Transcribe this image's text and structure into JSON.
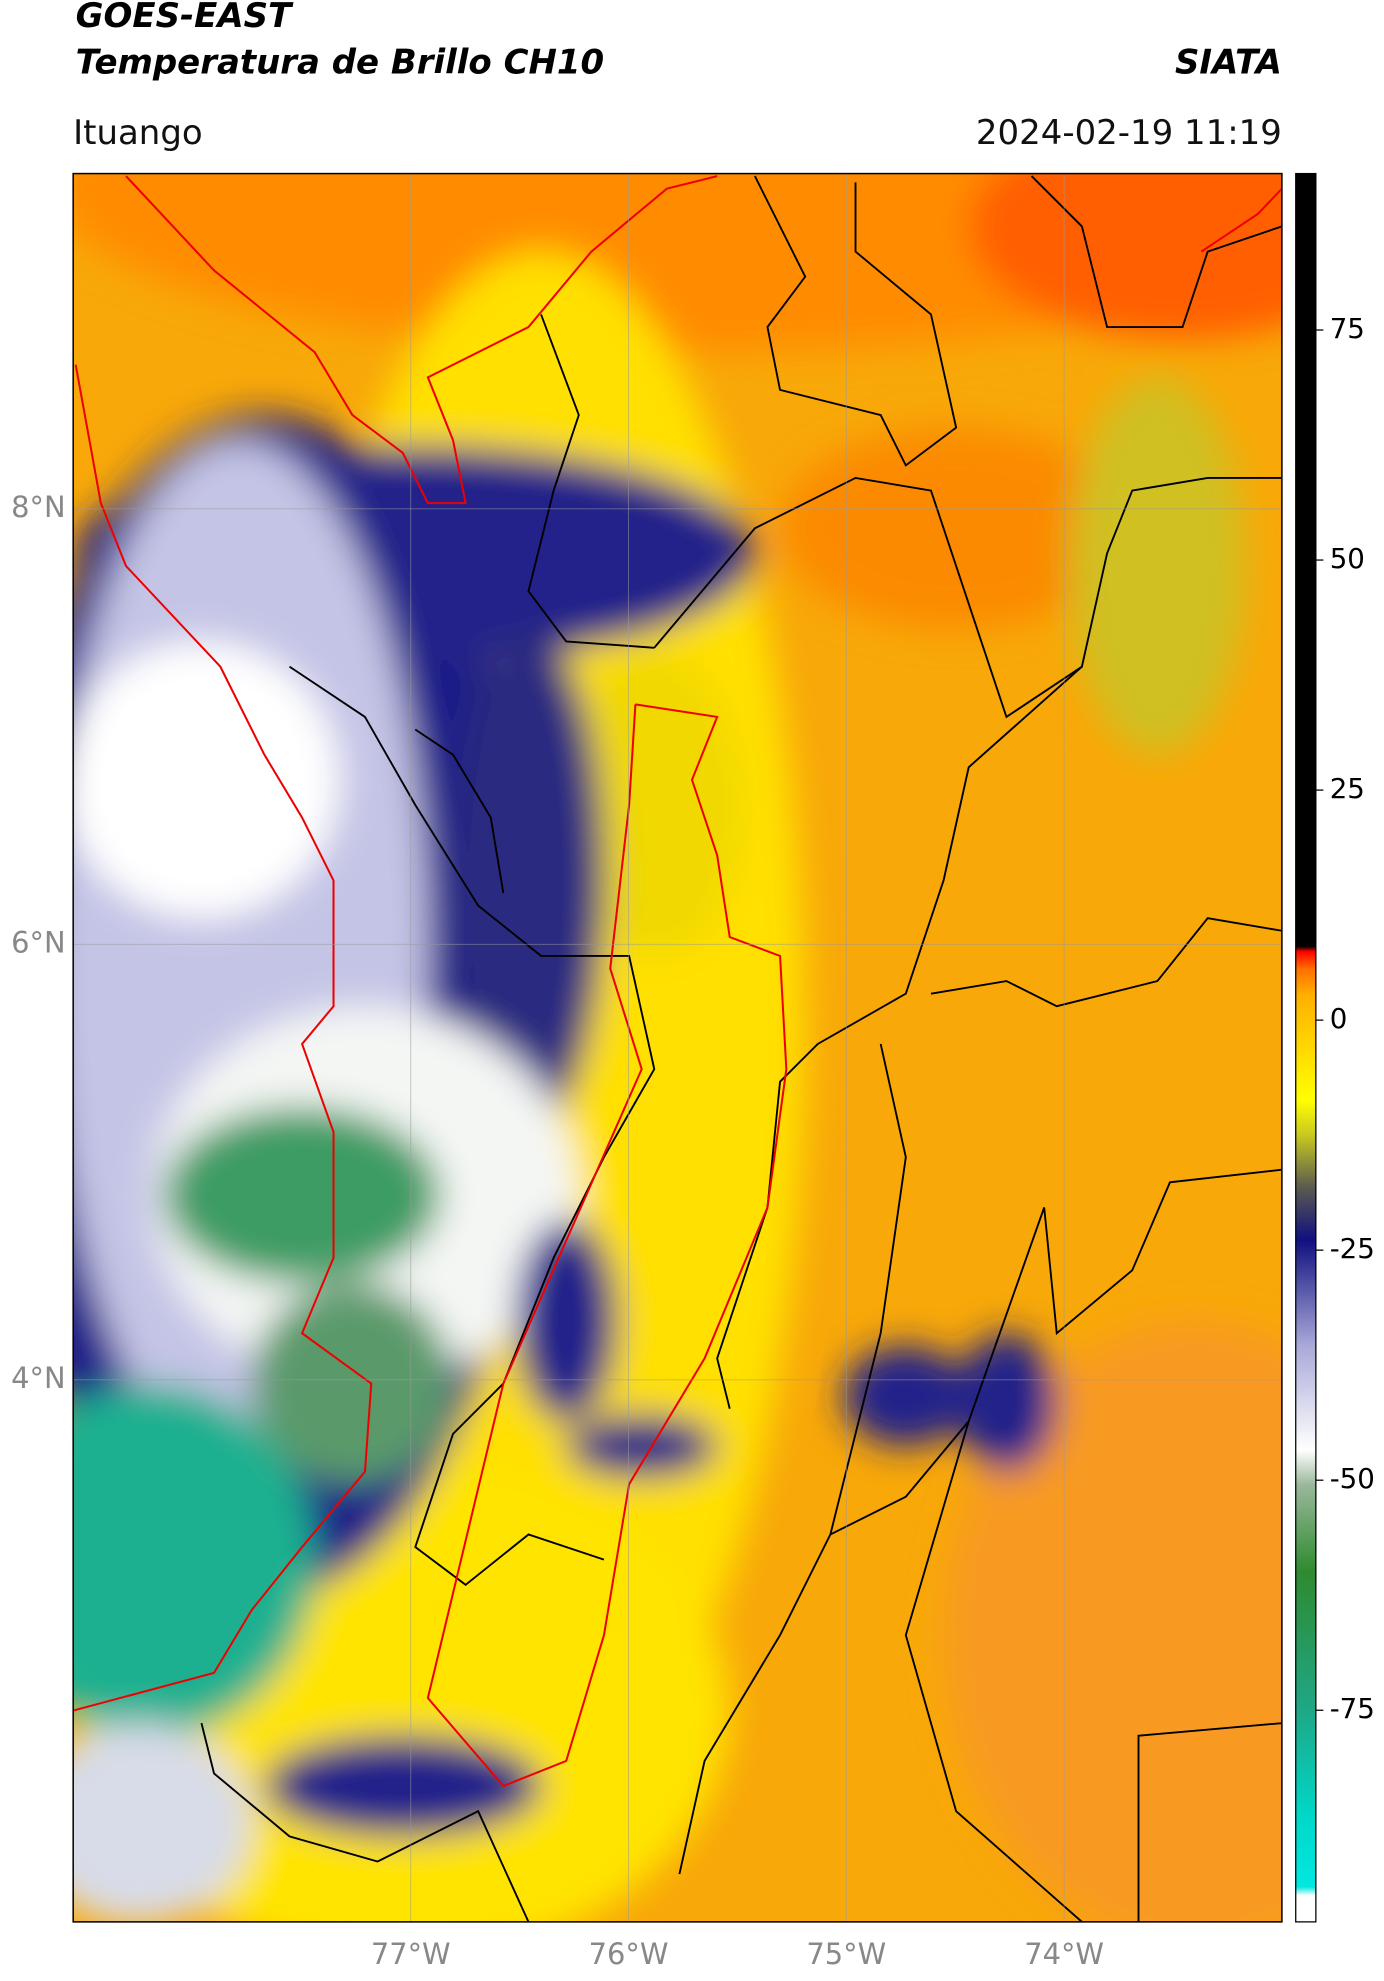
{
  "header": {
    "title_line1": "GOES-EAST",
    "title_line2": "Temperatura de Brillo CH10",
    "brand": "SIATA",
    "location": "Ituango",
    "datetime": "2024-02-19 11:19"
  },
  "map": {
    "lon_lim": [
      -78.55,
      -73.0
    ],
    "lat_lim": [
      1.51,
      9.54
    ],
    "lon_ticks": [
      {
        "value": -77,
        "label": "77°W"
      },
      {
        "value": -76,
        "label": "76°W"
      },
      {
        "value": -75,
        "label": "75°W"
      },
      {
        "value": -74,
        "label": "74°W"
      }
    ],
    "lat_ticks": [
      {
        "value": 8,
        "label": "8°N"
      },
      {
        "value": 6,
        "label": "6°N"
      },
      {
        "value": 4,
        "label": "4°N"
      }
    ]
  },
  "colorbar": {
    "lim": [
      -98,
      92
    ],
    "ticks": [
      75,
      50,
      25,
      0,
      -25,
      -50,
      -75
    ]
  }
}
